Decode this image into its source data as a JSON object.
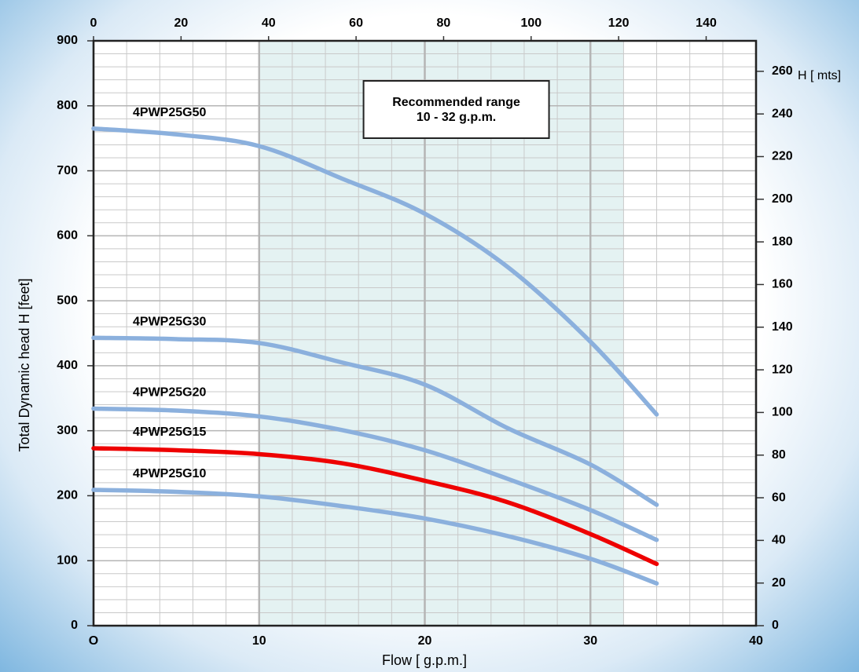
{
  "chart_data": {
    "type": "line",
    "x_label": "Flow [ g.p.m.]",
    "y_label": "Total Dynamic head H [feet]",
    "y2_label": "H [ mts]",
    "annotation": [
      "Recommended range",
      "10 - 32 g.p.m."
    ],
    "highlight_range": [
      10,
      32
    ],
    "highlight_color": "#e4f2f2",
    "grid": true,
    "x": [
      0,
      5,
      10,
      15,
      20,
      25,
      30,
      34
    ],
    "series": [
      {
        "name": "4PWP25G50",
        "color": "#8bb0dd",
        "values": [
          765,
          756,
          738,
          688,
          634,
          552,
          437,
          325
        ]
      },
      {
        "name": "4PWP25G30",
        "color": "#8bb0dd",
        "values": [
          443,
          441,
          435,
          405,
          371,
          304,
          248,
          186
        ]
      },
      {
        "name": "4PWP25G20",
        "color": "#8bb0dd",
        "values": [
          334,
          331,
          322,
          301,
          270,
          226,
          178,
          132
        ]
      },
      {
        "name": "4PWP25G15",
        "color": "#ee0000",
        "values": [
          273,
          270,
          264,
          250,
          223,
          190,
          141,
          95
        ]
      },
      {
        "name": "4PWP25G10",
        "color": "#8bb0dd",
        "values": [
          209,
          206,
          199,
          184,
          165,
          138,
          103,
          65
        ]
      }
    ],
    "xlim": [
      0,
      40
    ],
    "xticks": [
      {
        "value": 0,
        "label": "O"
      },
      10,
      20,
      30,
      40
    ],
    "x2lim": [
      0,
      151.4
    ],
    "x2ticks": [
      0,
      20,
      40,
      60,
      80,
      100,
      120,
      140
    ],
    "ylim": [
      0,
      900
    ],
    "yticks": [
      0,
      100,
      200,
      300,
      400,
      500,
      600,
      700,
      800,
      900
    ],
    "y2lim": [
      0,
      274.3
    ],
    "y2ticks": [
      0,
      20,
      40,
      60,
      80,
      100,
      120,
      140,
      160,
      180,
      200,
      220,
      240,
      260
    ]
  }
}
